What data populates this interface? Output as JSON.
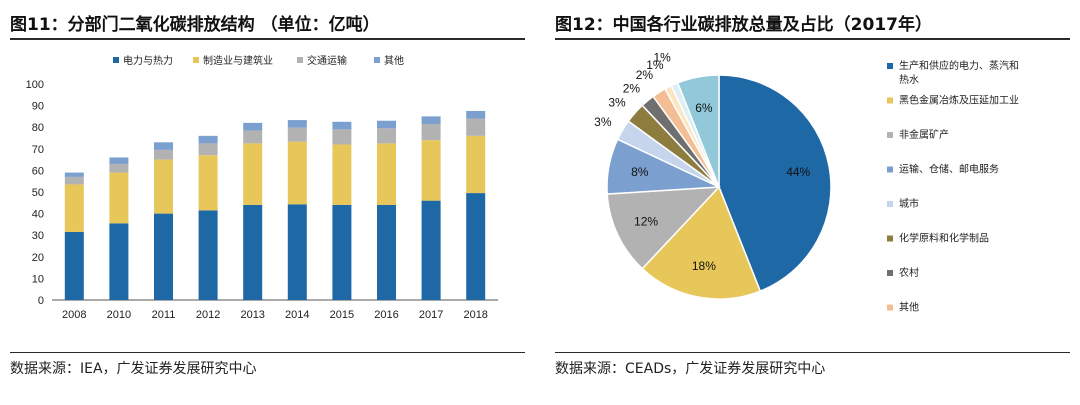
{
  "left": {
    "title": "图11：分部门二氧化碳排放结构 （单位：亿吨）",
    "source": "数据来源：IEA，广发证券发展研究中心"
  },
  "right": {
    "title": "图12：中国各行业碳排放总量及占比（2017年）",
    "source": "数据来源：CEADs，广发证券发展研究中心"
  },
  "colors": {
    "dark_blue": "#1F68A6",
    "yellow": "#E8C75A",
    "gray": "#B2B2B2",
    "mid_blue": "#7B9FCF",
    "light_blue": "#C6D5EC",
    "olive": "#8C7D3E",
    "dark_gray": "#6F6F6F",
    "peach": "#F3BE93",
    "cream": "#FBE6C4",
    "light_cyan": "#DDEFF3",
    "cyan": "#91C9DA"
  },
  "chart_data": [
    {
      "type": "bar",
      "stacked": true,
      "title": "图11：分部门二氧化碳排放结构 （单位：亿吨）",
      "categories": [
        "2008",
        "2010",
        "2011",
        "2012",
        "2013",
        "2014",
        "2015",
        "2016",
        "2017",
        "2018"
      ],
      "series": [
        {
          "name": "电力与热力",
          "color": "#1F68A6",
          "values": [
            31.5,
            35.5,
            40,
            41.5,
            44,
            44.3,
            44,
            44,
            46,
            49.5
          ]
        },
        {
          "name": "制造业与建筑业",
          "color": "#E8C75A",
          "values": [
            22,
            23.5,
            25,
            25.5,
            28.5,
            29,
            28,
            28.5,
            28,
            26.5
          ]
        },
        {
          "name": "交通运输",
          "color": "#B2B2B2",
          "values": [
            3.5,
            4,
            4.5,
            5.5,
            6,
            6.5,
            7,
            7,
            7.5,
            8
          ]
        },
        {
          "name": "其他",
          "color": "#7B9FCF",
          "values": [
            2,
            3,
            3.5,
            3.5,
            3.5,
            3.5,
            3.5,
            3.5,
            3.5,
            3.5
          ]
        }
      ],
      "ylim": [
        0,
        100
      ],
      "yticks": [
        "0",
        "10",
        "20",
        "30",
        "40",
        "50",
        "60",
        "70",
        "80",
        "90",
        "100"
      ],
      "legend_position": "top"
    },
    {
      "type": "pie",
      "title": "图12：中国各行业碳排放总量及占比（2017年）",
      "slices": [
        {
          "name": "生产和供应的电力、蒸汽和",
          "name2": "热水",
          "value": 44,
          "label": "44%",
          "color": "#1F68A6"
        },
        {
          "name": "黑色金属冶炼及压延加工业",
          "value": 18,
          "label": "18%",
          "color": "#E8C75A"
        },
        {
          "name": "非金属矿产",
          "value": 12,
          "label": "12%",
          "color": "#B2B2B2"
        },
        {
          "name": "运输、仓储、邮电服务",
          "value": 8,
          "label": "8%",
          "color": "#7B9FCF"
        },
        {
          "name": "城市",
          "value": 3,
          "label": "3%",
          "color": "#C6D5EC"
        },
        {
          "name": "化学原料和化学制品",
          "value": 3,
          "label": "3%",
          "color": "#8C7D3E"
        },
        {
          "name": "农村",
          "value": 2,
          "label": "2%",
          "color": "#6F6F6F"
        },
        {
          "name": "其他",
          "value": 2,
          "label": "2%",
          "color": "#F3BE93"
        },
        {
          "name": "",
          "value": 1,
          "label": "1%",
          "color": "#FBE6C4"
        },
        {
          "name": "",
          "value": 1,
          "label": "1%",
          "color": "#DDEFF3"
        },
        {
          "name": "",
          "value": 6,
          "label": "6%",
          "color": "#91C9DA"
        }
      ],
      "legend_position": "right"
    }
  ]
}
